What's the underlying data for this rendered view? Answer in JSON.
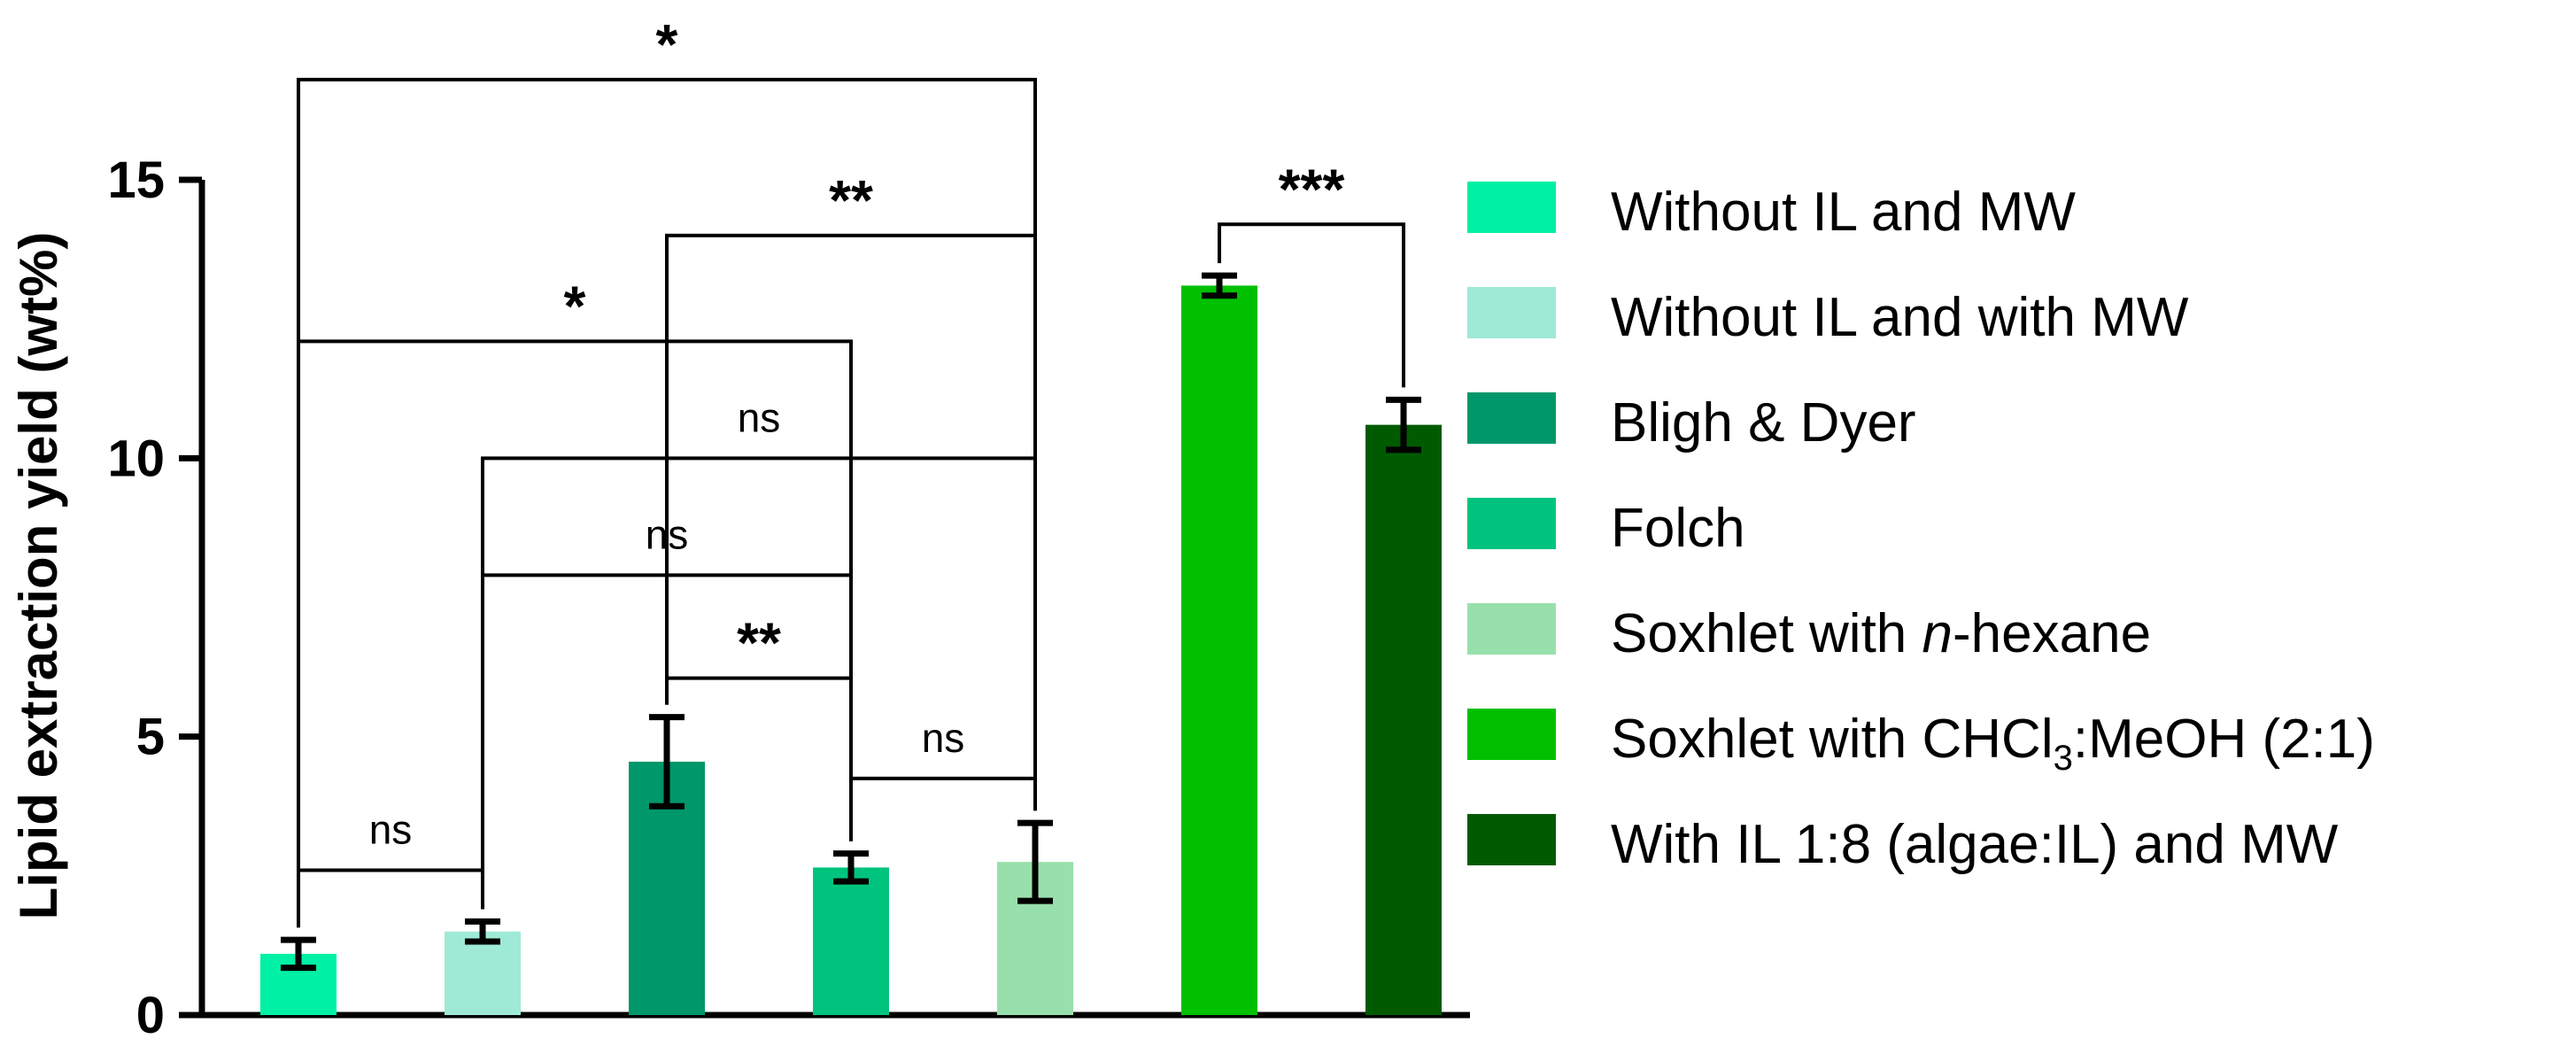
{
  "chart_data": {
    "type": "bar",
    "ylabel": "Lipid extraction yield (wt%)",
    "xlabel": "",
    "ylim": [
      0,
      15
    ],
    "yticks": [
      0,
      5,
      10,
      15
    ],
    "grid": false,
    "legend_position": "right",
    "series": [
      {
        "name": "Without IL and MW",
        "value": 1.1,
        "error": 0.25,
        "color": "#00f0a5"
      },
      {
        "name": "Without IL and with MW",
        "value": 1.5,
        "error": 0.18,
        "color": "#9eead6"
      },
      {
        "name": "Bligh & Dyer",
        "value": 4.55,
        "error": 0.8,
        "color": "#00976a"
      },
      {
        "name": "Folch",
        "value": 2.65,
        "error": 0.25,
        "color": "#00c47e"
      },
      {
        "name": "Soxhlet with n-hexane",
        "value": 2.75,
        "error": 0.7,
        "color": "#98e0ab"
      },
      {
        "name": "Soxhlet with CHCl3:MeOH (2:1)",
        "value": 13.1,
        "error": 0.18,
        "color": "#00c000"
      },
      {
        "name": "With IL 1:8 (algae:IL) and MW",
        "value": 10.6,
        "error": 0.45,
        "color": "#005b00"
      }
    ],
    "legend": [
      {
        "parts": [
          {
            "t": "Without IL and MW"
          }
        ]
      },
      {
        "parts": [
          {
            "t": "Without IL and with MW"
          }
        ]
      },
      {
        "parts": [
          {
            "t": "Bligh & Dyer"
          }
        ]
      },
      {
        "parts": [
          {
            "t": "Folch"
          }
        ]
      },
      {
        "parts": [
          {
            "t": "Soxhlet with "
          },
          {
            "t": "n",
            "style": "italic"
          },
          {
            "t": "-hexane"
          }
        ]
      },
      {
        "parts": [
          {
            "t": "Soxhlet with CHCl"
          },
          {
            "t": "3",
            "style": "sub"
          },
          {
            "t": ":MeOH (2:1)"
          }
        ]
      },
      {
        "parts": [
          {
            "t": "With IL 1:8 (algae:IL) and MW"
          }
        ]
      }
    ],
    "significance": [
      {
        "a": 0,
        "b": 1,
        "y": 2.6,
        "label": "ns"
      },
      {
        "a": 2,
        "b": 3,
        "y": 6.05,
        "label": "**"
      },
      {
        "a": 3,
        "b": 4,
        "y": 4.25,
        "label": "ns"
      },
      {
        "a": 1,
        "b": 3,
        "y": 7.9,
        "label": "ns"
      },
      {
        "a": 1,
        "b": 4,
        "y": 10.0,
        "label": "ns"
      },
      {
        "a": 0,
        "b": 3,
        "y": 12.1,
        "label": "*"
      },
      {
        "a": 2,
        "b": 4,
        "y": 14.0,
        "label": "**"
      },
      {
        "a": 0,
        "b": 4,
        "y": 16.8,
        "label": "*"
      },
      {
        "a": 5,
        "b": 6,
        "y": 14.2,
        "label": "***"
      }
    ]
  }
}
